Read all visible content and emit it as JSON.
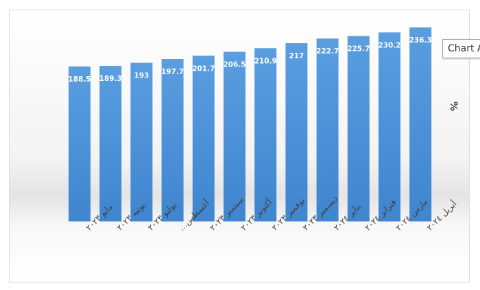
{
  "chart_data": {
    "type": "bar",
    "categories": [
      "مايو ٢٠٢٣",
      "يونيه ٢٠٢٣",
      "يوليو ٢٠٢٣",
      "أغسطس...",
      "سبتمبر ٢٠٢٣",
      "أكتوبر ٢٠٢٣",
      "نوفمبر ٢٠٢٣",
      "ديسمبر ٢٠٢٣",
      "يناير ٢٠٢٤",
      "فبراير ٢٠٢٤",
      "مارس ٢٠٢٤",
      "أبريل ٢٠٢٤"
    ],
    "values": [
      188.5,
      189.3,
      193,
      197.7,
      201.7,
      206.5,
      210.9,
      217,
      222.7,
      225.7,
      230.2,
      236.3
    ],
    "data_labels": [
      "188.5",
      "189.3",
      "193",
      "197.7",
      "201.7",
      "206.5",
      "210.9",
      "217",
      "222.7",
      "225.7",
      "230.2",
      "236.3"
    ],
    "ylabel": "%",
    "xlabel": "",
    "title": "",
    "bar_color": "#4a8fd4",
    "label_color": "#ffffff"
  },
  "tooltip": {
    "text": "Chart Area"
  }
}
